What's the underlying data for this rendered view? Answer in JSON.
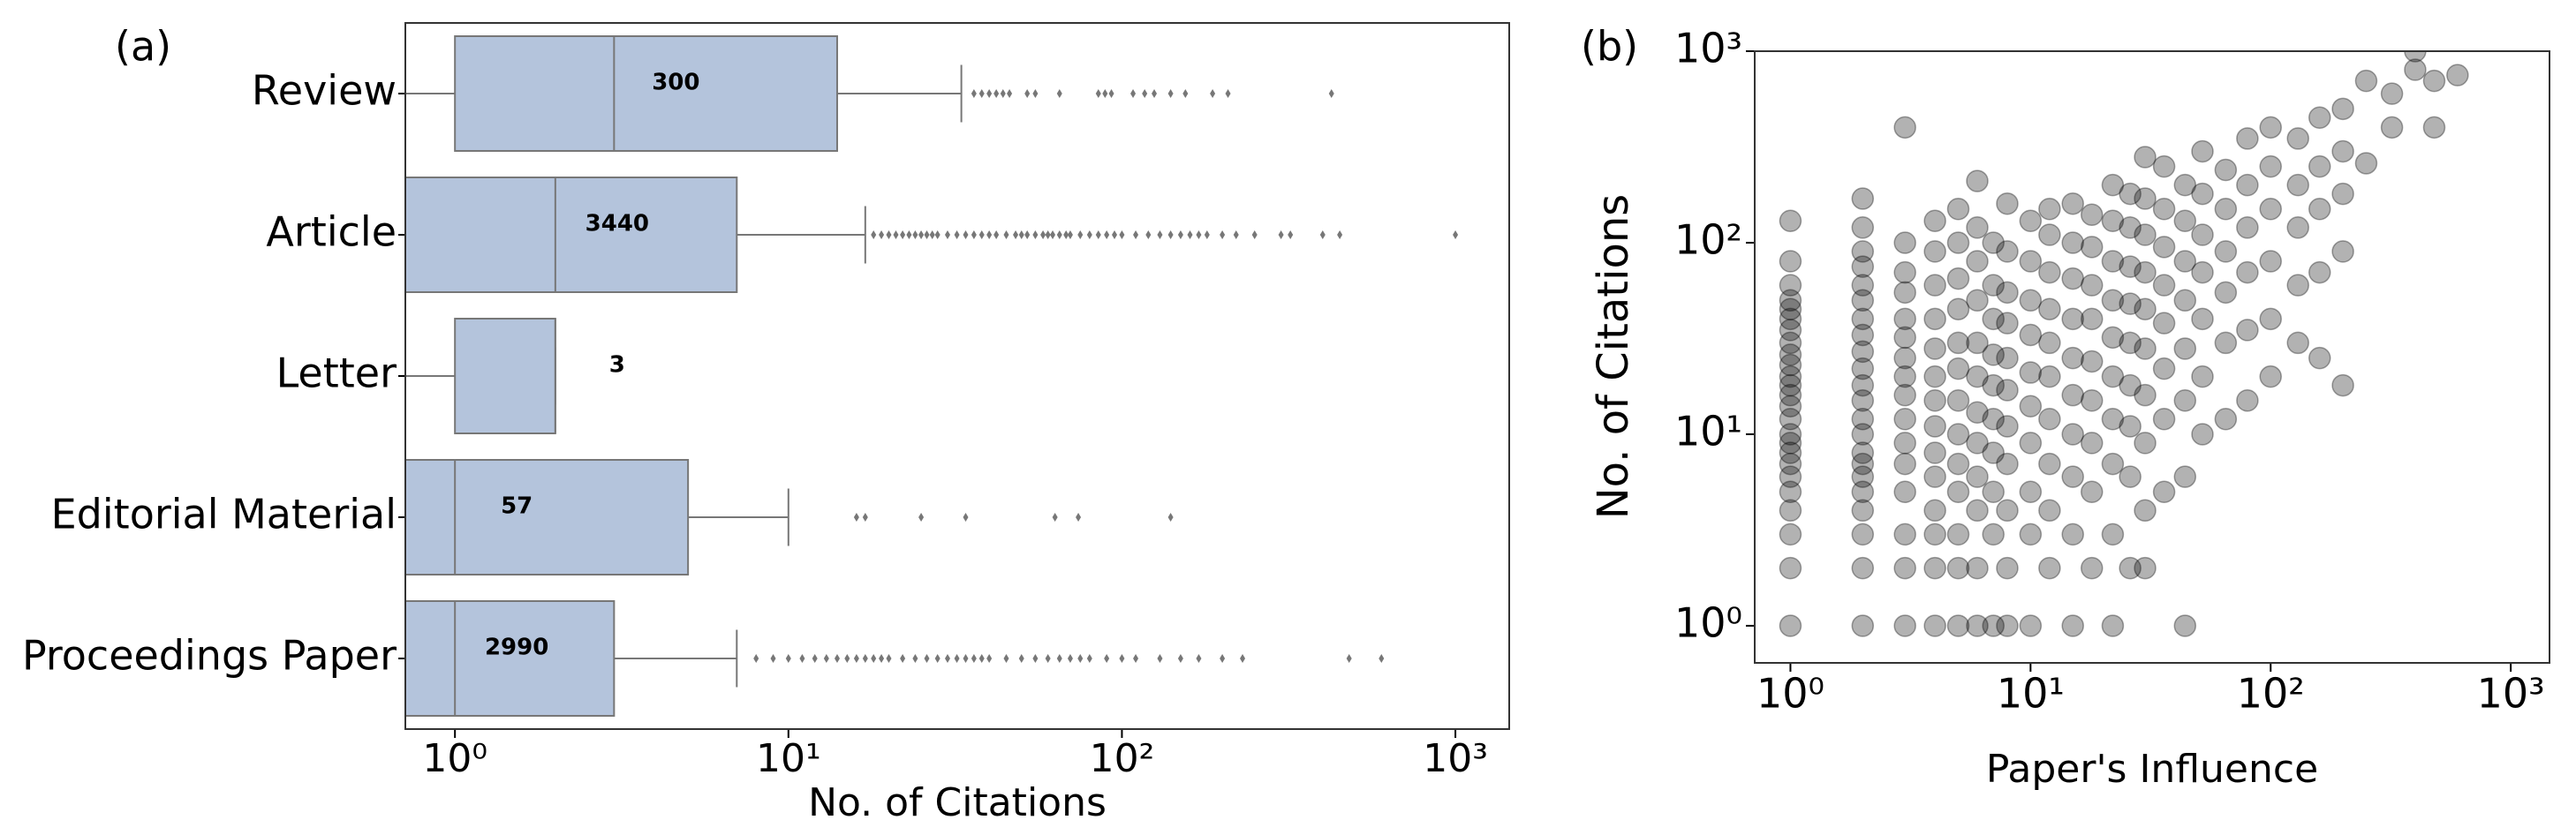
{
  "chart_data": [
    {
      "type": "boxplot",
      "panel_label": "(a)",
      "xlabel": "No. of Citations",
      "log_x": true,
      "xlim": [
        0.71,
        1450
      ],
      "xticks": [
        {
          "value": 1,
          "label": "10⁰"
        },
        {
          "value": 10,
          "label": "10¹"
        },
        {
          "value": 100,
          "label": "10²"
        },
        {
          "value": 1000,
          "label": "10³"
        }
      ],
      "color": "#b4c4dc",
      "edge_color": "#777777",
      "categories": [
        "Review",
        "Article",
        "Letter",
        "Editorial Material",
        "Proceedings Paper"
      ],
      "boxes": [
        {
          "whisker_low": 0.71,
          "q1": 1,
          "median": 3,
          "q3": 14,
          "whisker_high": 33,
          "count": 300,
          "outliers": [
            36,
            38,
            40,
            42,
            44,
            46,
            52,
            55,
            65,
            85,
            89,
            93,
            108,
            117,
            125,
            140,
            155,
            187,
            208,
            425
          ]
        },
        {
          "whisker_low": 0.71,
          "q1": 0.71,
          "median": 2,
          "q3": 7,
          "whisker_high": 17,
          "count": 3440,
          "outliers": [
            18,
            19,
            20,
            21,
            22,
            23,
            24,
            25,
            26,
            27,
            28,
            30,
            32,
            34,
            36,
            38,
            40,
            42,
            45,
            48,
            50,
            52,
            55,
            58,
            60,
            62,
            65,
            68,
            70,
            75,
            80,
            85,
            90,
            95,
            100,
            110,
            120,
            130,
            140,
            150,
            160,
            170,
            180,
            200,
            220,
            250,
            300,
            320,
            400,
            450,
            1000
          ]
        },
        {
          "whisker_low": 0.71,
          "q1": 1,
          "median": 2,
          "q3": 2,
          "whisker_high": 2,
          "count": 3,
          "outliers": []
        },
        {
          "whisker_low": 0.71,
          "q1": 0.71,
          "median": 1,
          "q3": 5,
          "whisker_high": 10,
          "count": 57,
          "outliers": [
            16,
            17,
            25,
            34,
            63,
            74,
            140
          ]
        },
        {
          "whisker_low": 0.71,
          "q1": 0.71,
          "median": 1,
          "q3": 3,
          "whisker_high": 7,
          "count": 2990,
          "outliers": [
            8,
            9,
            10,
            11,
            12,
            13,
            14,
            15,
            16,
            17,
            18,
            19,
            20,
            22,
            24,
            26,
            28,
            30,
            32,
            34,
            36,
            38,
            40,
            45,
            50,
            55,
            60,
            65,
            70,
            75,
            80,
            90,
            100,
            110,
            130,
            150,
            170,
            200,
            230,
            480,
            600
          ]
        }
      ]
    },
    {
      "type": "scatter",
      "panel_label": "(b)",
      "xlabel": "Paper's Influence",
      "ylabel": "No. of Citations",
      "log_x": true,
      "log_y": true,
      "color": "#000000",
      "xlim": [
        0.71,
        1450
      ],
      "ylim": [
        0.64,
        1000
      ],
      "xticks": [
        {
          "value": 1,
          "label": "10⁰"
        },
        {
          "value": 10,
          "label": "10¹"
        },
        {
          "value": 100,
          "label": "10²"
        },
        {
          "value": 1000,
          "label": "10³"
        }
      ],
      "yticks": [
        {
          "value": 1,
          "label": "10⁰"
        },
        {
          "value": 10,
          "label": "10¹"
        },
        {
          "value": 100,
          "label": "10²"
        },
        {
          "value": 1000,
          "label": "10³"
        }
      ],
      "x": [
        1,
        1,
        1,
        1,
        1,
        1,
        1,
        1,
        1,
        1,
        1,
        1,
        1,
        1,
        1,
        1,
        1,
        1,
        1,
        1,
        1,
        1,
        1,
        1,
        1,
        2,
        2,
        2,
        2,
        2,
        2,
        2,
        2,
        2,
        2,
        2,
        2,
        2,
        2,
        2,
        2,
        2,
        2,
        2,
        2,
        2,
        2,
        3,
        3,
        3,
        3,
        3,
        3,
        3,
        3,
        3,
        3,
        3,
        3,
        3,
        3,
        3,
        3,
        4,
        4,
        4,
        4,
        4,
        4,
        4,
        4,
        4,
        4,
        4,
        4,
        4,
        4,
        5,
        5,
        5,
        5,
        5,
        5,
        5,
        5,
        5,
        5,
        5,
        5,
        5,
        6,
        6,
        6,
        6,
        6,
        6,
        6,
        6,
        6,
        6,
        6,
        6,
        7,
        7,
        7,
        7,
        7,
        7,
        7,
        7,
        7,
        7,
        8,
        8,
        8,
        8,
        8,
        8,
        8,
        8,
        8,
        8,
        8,
        10,
        10,
        10,
        10,
        10,
        10,
        10,
        10,
        10,
        10,
        12,
        12,
        12,
        12,
        12,
        12,
        12,
        12,
        12,
        12,
        15,
        15,
        15,
        15,
        15,
        15,
        15,
        15,
        15,
        15,
        18,
        18,
        18,
        18,
        18,
        18,
        18,
        18,
        18,
        22,
        22,
        22,
        22,
        22,
        22,
        22,
        22,
        22,
        22,
        26,
        26,
        26,
        26,
        26,
        26,
        26,
        26,
        26,
        30,
        30,
        30,
        30,
        30,
        30,
        30,
        30,
        30,
        30,
        36,
        36,
        36,
        36,
        36,
        36,
        36,
        36,
        44,
        44,
        44,
        44,
        44,
        44,
        44,
        44,
        52,
        52,
        52,
        52,
        52,
        52,
        52,
        65,
        65,
        65,
        65,
        65,
        65,
        80,
        80,
        80,
        80,
        80,
        80,
        100,
        100,
        100,
        100,
        100,
        100,
        130,
        130,
        130,
        130,
        130,
        160,
        160,
        160,
        160,
        160,
        200,
        200,
        200,
        200,
        200,
        250,
        250,
        320,
        320,
        400,
        400,
        480,
        480,
        600
      ],
      "values": [
        1,
        2,
        3,
        4,
        5,
        6,
        7,
        8,
        9,
        10,
        12,
        14,
        16,
        18,
        20,
        23,
        26,
        30,
        35,
        40,
        45,
        50,
        60,
        80,
        130,
        1,
        2,
        3,
        4,
        5,
        6,
        7,
        8,
        10,
        12,
        15,
        18,
        22,
        27,
        33,
        40,
        50,
        60,
        75,
        90,
        120,
        170,
        1,
        2,
        3,
        5,
        7,
        9,
        12,
        16,
        20,
        25,
        32,
        40,
        55,
        70,
        100,
        400,
        1,
        2,
        3,
        4,
        6,
        8,
        11,
        15,
        20,
        28,
        40,
        60,
        90,
        130,
        1,
        2,
        3,
        5,
        7,
        10,
        15,
        22,
        30,
        45,
        65,
        100,
        150,
        1,
        2,
        4,
        6,
        9,
        13,
        20,
        30,
        50,
        80,
        120,
        210,
        1,
        3,
        5,
        8,
        12,
        18,
        26,
        40,
        60,
        100,
        1,
        2,
        4,
        7,
        11,
        17,
        25,
        38,
        55,
        90,
        160,
        1,
        3,
        5,
        9,
        14,
        21,
        33,
        50,
        80,
        130,
        2,
        4,
        7,
        12,
        20,
        30,
        45,
        70,
        110,
        150,
        1,
        3,
        6,
        10,
        16,
        25,
        40,
        65,
        100,
        160,
        2,
        5,
        9,
        15,
        24,
        40,
        60,
        95,
        140,
        1,
        3,
        7,
        12,
        20,
        32,
        50,
        80,
        130,
        200,
        2,
        6,
        11,
        18,
        30,
        48,
        75,
        120,
        180,
        2,
        4,
        9,
        16,
        28,
        45,
        70,
        110,
        170,
        280,
        5,
        12,
        22,
        38,
        60,
        95,
        150,
        250,
        1,
        6,
        15,
        28,
        50,
        80,
        130,
        200,
        10,
        20,
        40,
        70,
        110,
        180,
        300,
        12,
        30,
        55,
        90,
        150,
        240,
        15,
        35,
        70,
        120,
        200,
        350,
        20,
        40,
        80,
        150,
        250,
        400,
        30,
        60,
        120,
        200,
        350,
        25,
        70,
        150,
        250,
        450,
        18,
        90,
        180,
        300,
        500,
        260,
        700,
        400,
        600,
        800,
        1000,
        400,
        700,
        750
      ]
    }
  ]
}
